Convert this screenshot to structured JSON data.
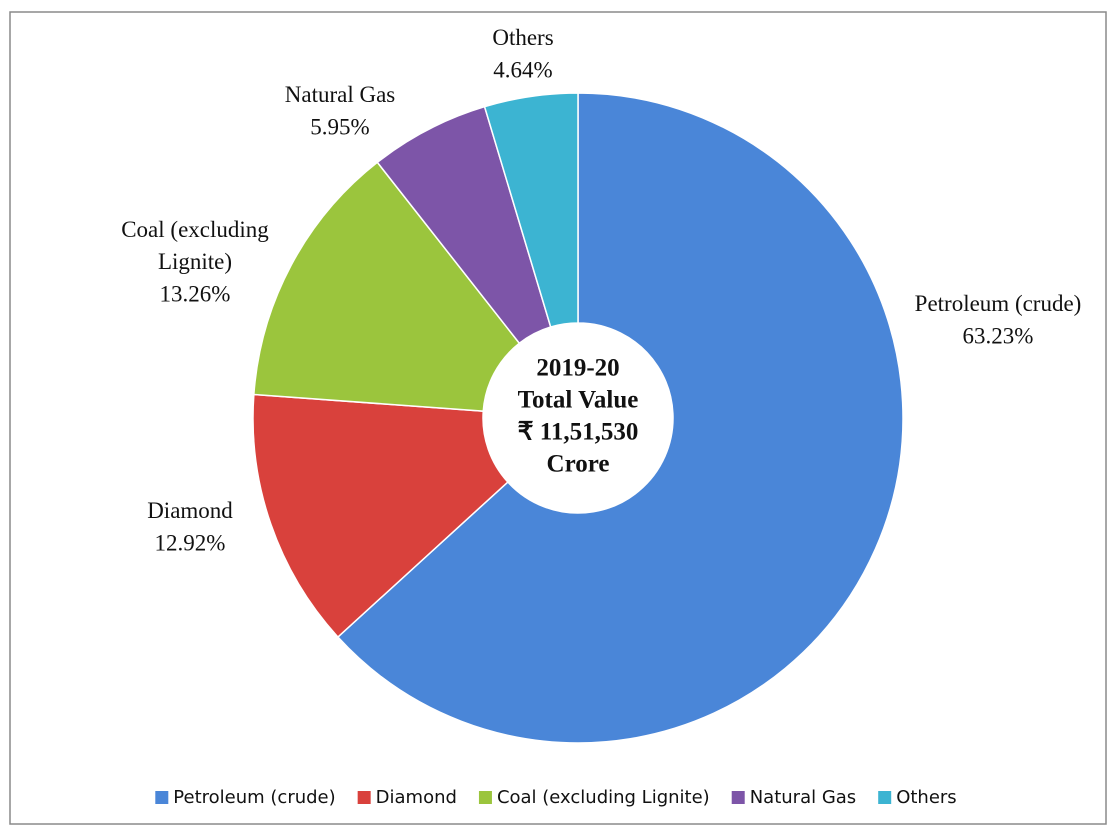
{
  "chart_data": {
    "type": "doughnut",
    "categories": [
      "Petroleum (crude)",
      "Diamond",
      "Coal (excluding Lignite)",
      "Natural Gas",
      "Others"
    ],
    "values": [
      63.23,
      12.92,
      13.26,
      5.95,
      4.64
    ],
    "value_labels": [
      "63.23%",
      "12.92%",
      "13.26%",
      "5.95%",
      "4.64%"
    ],
    "colors": [
      "#4a86d8",
      "#d9413c",
      "#9bc53d",
      "#7d55a8",
      "#3cb4d2"
    ],
    "center_text": [
      "2019-20",
      "Total Value",
      "₹ 11,51,530",
      "Crore"
    ],
    "legend": "bottom"
  }
}
